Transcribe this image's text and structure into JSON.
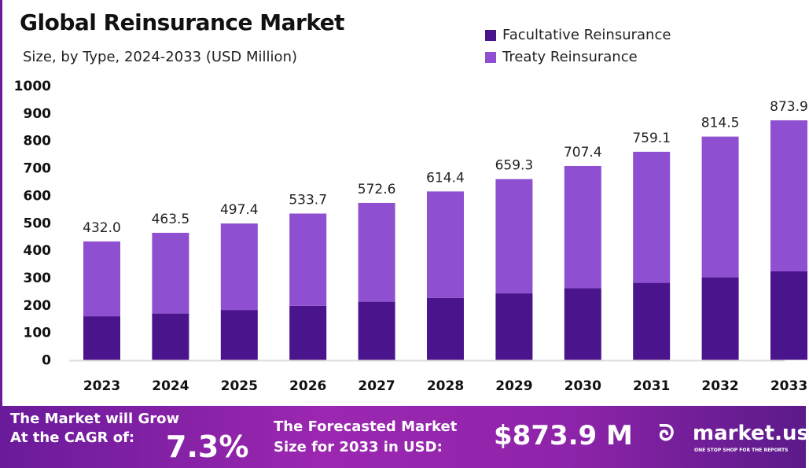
{
  "chart_data": {
    "type": "bar",
    "stacked": true,
    "title": "Global Reinsurance Market",
    "subtitle": "Size, by Type, 2024-2033 (USD Million)",
    "categories": [
      "2023",
      "2024",
      "2025",
      "2026",
      "2027",
      "2028",
      "2029",
      "2030",
      "2031",
      "2032",
      "2033"
    ],
    "totals": [
      "432.0",
      "463.5",
      "497.4",
      "533.7",
      "572.6",
      "614.4",
      "659.3",
      "707.4",
      "759.1",
      "814.5",
      "873.9"
    ],
    "series": [
      {
        "name": "Facultative Reinsurance",
        "color": "#4a148c",
        "values": [
          159,
          169,
          182,
          197,
          212,
          226,
          243,
          261,
          281,
          301,
          323
        ]
      },
      {
        "name": "Treaty Reinsurance",
        "color": "#8e4fd0",
        "values": [
          273.0,
          294.5,
          315.4,
          336.7,
          360.6,
          388.4,
          416.3,
          446.4,
          478.1,
          513.5,
          550.9
        ]
      }
    ],
    "ylim": [
      0,
      1000
    ],
    "yticks": [
      "0",
      "100",
      "200",
      "300",
      "400",
      "500",
      "600",
      "700",
      "800",
      "900",
      "1000"
    ],
    "grid": false,
    "legend": "top-right"
  },
  "banner": {
    "cagr_line1": "The Market will Grow",
    "cagr_line2": "At the CAGR of:",
    "cagr_value": "7.3%",
    "forecast_line1": "The Forecasted Market",
    "forecast_line2": "Size for 2033 in USD:",
    "forecast_value": "$873.9 M",
    "brand": "market.us",
    "tagline": "ONE STOP SHOP FOR THE REPORTS"
  }
}
